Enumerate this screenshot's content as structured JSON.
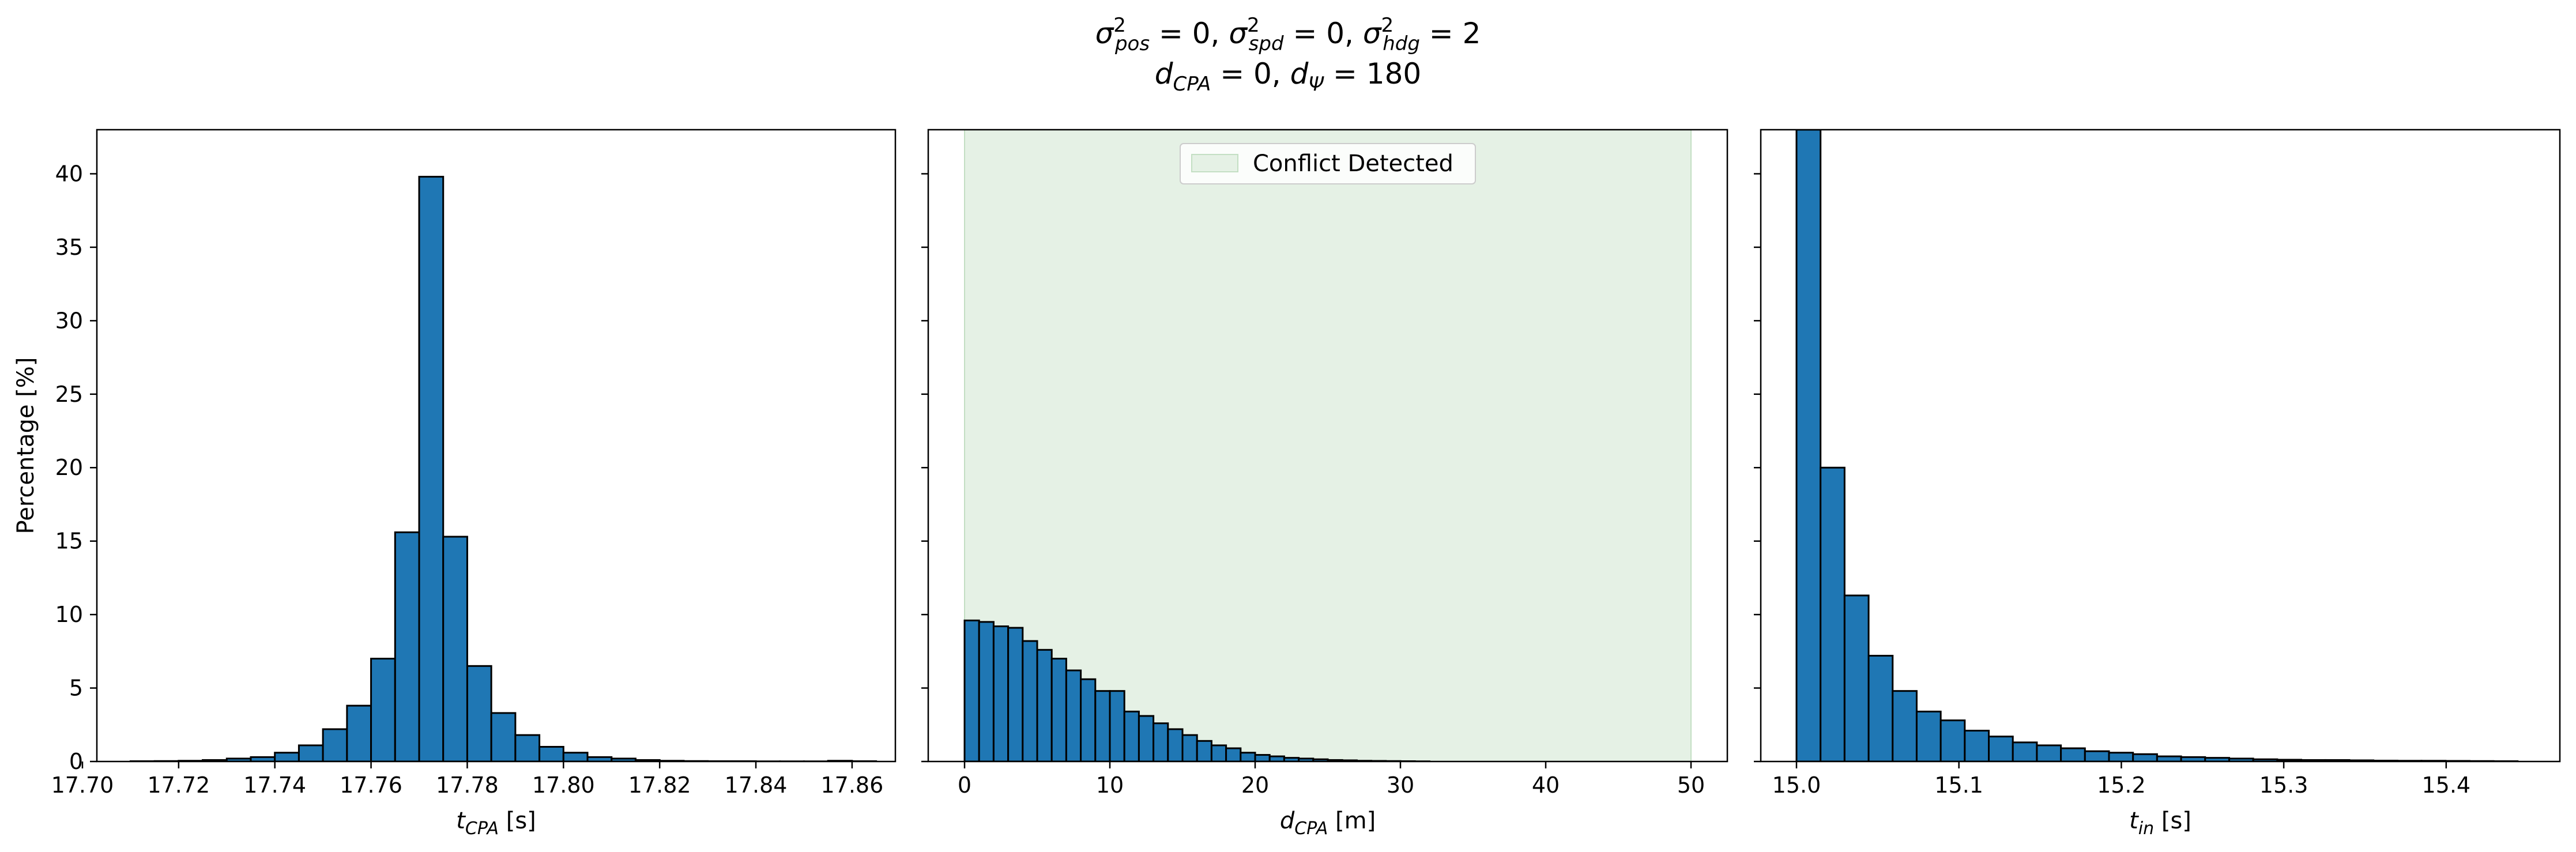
{
  "title": {
    "line1_parts": [
      {
        "t": "σ",
        "sub": "pos",
        "sup": "2",
        "rest": " = 0, "
      },
      {
        "t": "σ",
        "sub": "spd",
        "sup": "2",
        "rest": " = 0, "
      },
      {
        "t": "σ",
        "sub": "hdg",
        "sup": "2",
        "rest": " = 2"
      }
    ],
    "line2_parts": [
      {
        "t": "d",
        "sub": "CPA",
        "rest": " = 0, "
      },
      {
        "t": "d",
        "sub": "Ψ",
        "rest": " = 180"
      }
    ]
  },
  "colors": {
    "bar_fill": "#1f77b4",
    "bar_edge": "#000000",
    "conflict_region": "#e5f1e5",
    "conflict_region_edge": "#c3dfc3"
  },
  "chart_data": [
    {
      "type": "bar",
      "subplot": "t_cpa",
      "xlabel": {
        "main": "t",
        "sub": "CPA",
        "unit": " [s]"
      },
      "ylabel": "Percentage [%]",
      "xlim": [
        17.703,
        17.869
      ],
      "ylim": [
        0,
        43
      ],
      "xticks": [
        17.7,
        17.72,
        17.74,
        17.76,
        17.78,
        17.8,
        17.82,
        17.84,
        17.86
      ],
      "xtick_labels": [
        "17.70",
        "17.72",
        "17.74",
        "17.76",
        "17.78",
        "17.80",
        "17.82",
        "17.84",
        "17.86"
      ],
      "yticks": [
        0,
        5,
        10,
        15,
        20,
        25,
        30,
        35,
        40
      ],
      "ytick_labels": [
        "0",
        "5",
        "10",
        "15",
        "20",
        "25",
        "30",
        "35",
        "40"
      ],
      "bin_edges": [
        17.71,
        17.715,
        17.72,
        17.725,
        17.73,
        17.735,
        17.74,
        17.745,
        17.75,
        17.755,
        17.76,
        17.765,
        17.77,
        17.775,
        17.78,
        17.785,
        17.79,
        17.795,
        17.8,
        17.805,
        17.81,
        17.815,
        17.82,
        17.825,
        17.83,
        17.835,
        17.84,
        17.845,
        17.85,
        17.855,
        17.86,
        17.865
      ],
      "values": [
        0.02,
        0.03,
        0.05,
        0.1,
        0.2,
        0.3,
        0.6,
        1.1,
        2.2,
        3.8,
        7.0,
        15.6,
        39.8,
        15.3,
        6.5,
        3.3,
        1.8,
        1.0,
        0.6,
        0.3,
        0.2,
        0.1,
        0.05,
        0.03,
        0.02,
        0.02,
        0.01,
        0.01,
        0.01,
        0.05,
        0.02
      ]
    },
    {
      "type": "bar",
      "subplot": "d_cpa",
      "xlabel": {
        "main": "d",
        "sub": "CPA",
        "unit": " [m]"
      },
      "xlim": [
        -2.5,
        52.5
      ],
      "ylim": [
        0,
        43
      ],
      "xticks": [
        0,
        10,
        20,
        30,
        40,
        50
      ],
      "xtick_labels": [
        "0",
        "10",
        "20",
        "30",
        "40",
        "50"
      ],
      "yticks": [
        0,
        5,
        10,
        15,
        20,
        25,
        30,
        35,
        40
      ],
      "conflict_region": [
        0,
        50
      ],
      "legend": {
        "label": "Conflict Detected",
        "position": "top-center"
      },
      "bin_edges": [
        0,
        1,
        2,
        3,
        4,
        5,
        6,
        7,
        8,
        9,
        10,
        11,
        12,
        13,
        14,
        15,
        16,
        17,
        18,
        19,
        20,
        21,
        22,
        23,
        24,
        25,
        26,
        27,
        28,
        29,
        30,
        31,
        32
      ],
      "values": [
        9.6,
        9.5,
        9.2,
        9.1,
        8.2,
        7.6,
        7.0,
        6.2,
        5.6,
        4.8,
        4.8,
        3.4,
        3.1,
        2.6,
        2.2,
        1.8,
        1.4,
        1.1,
        0.9,
        0.6,
        0.45,
        0.35,
        0.25,
        0.2,
        0.15,
        0.1,
        0.08,
        0.05,
        0.04,
        0.03,
        0.02,
        0.01
      ]
    },
    {
      "type": "bar",
      "subplot": "t_in",
      "xlabel": {
        "main": "t",
        "sub": "in",
        "unit": " [s]"
      },
      "xlim": [
        14.978,
        15.47
      ],
      "ylim": [
        0,
        43
      ],
      "xticks": [
        15.0,
        15.1,
        15.2,
        15.3,
        15.4
      ],
      "xtick_labels": [
        "15.0",
        "15.1",
        "15.2",
        "15.3",
        "15.4"
      ],
      "yticks": [
        0,
        5,
        10,
        15,
        20,
        25,
        30,
        35,
        40
      ],
      "bin_edges": [
        15.0,
        15.0148,
        15.0296,
        15.0444,
        15.0592,
        15.074,
        15.0888,
        15.1036,
        15.1184,
        15.1332,
        15.148,
        15.1628,
        15.1776,
        15.1924,
        15.2072,
        15.222,
        15.2368,
        15.2516,
        15.2664,
        15.2812,
        15.296,
        15.3108,
        15.3256,
        15.3404,
        15.3552,
        15.37,
        15.3848,
        15.3996,
        15.4144,
        15.4292,
        15.444
      ],
      "values": [
        43,
        20.0,
        11.3,
        7.2,
        4.8,
        3.4,
        2.8,
        2.1,
        1.7,
        1.3,
        1.1,
        0.9,
        0.7,
        0.6,
        0.5,
        0.35,
        0.3,
        0.25,
        0.2,
        0.15,
        0.12,
        0.1,
        0.1,
        0.08,
        0.06,
        0.05,
        0.05,
        0.04,
        0.03,
        0.02
      ]
    }
  ]
}
